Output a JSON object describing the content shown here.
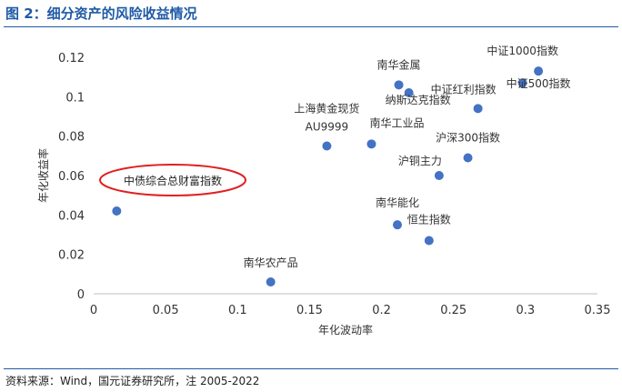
{
  "header": {
    "title": "图 2：细分资产的风险收益情况"
  },
  "footer": {
    "source": "资料来源：Wind，国元证券研究所，注 2005-2022"
  },
  "chart_data": {
    "type": "scatter",
    "title": "",
    "xlabel": "年化波动率",
    "ylabel": "年化收益率",
    "xlim": [
      0,
      0.35
    ],
    "ylim": [
      0,
      0.12
    ],
    "xticks": [
      "0",
      "0.05",
      "0.1",
      "0.15",
      "0.2",
      "0.25",
      "0.3",
      "0.35"
    ],
    "yticks": [
      "0",
      "0.02",
      "0.04",
      "0.06",
      "0.08",
      "0.1",
      "0.12"
    ],
    "grid": false,
    "point_color": "#4472c4",
    "annotation_color": "#e02020",
    "points": [
      {
        "label": "中债综合总财富指数",
        "x": 0.016,
        "y": 0.042
      },
      {
        "label": "南华农产品",
        "x": 0.123,
        "y": 0.006
      },
      {
        "label": "上海黄金现货AU9999",
        "x": 0.162,
        "y": 0.075
      },
      {
        "label": "南华工业品",
        "x": 0.193,
        "y": 0.076
      },
      {
        "label": "南华金属",
        "x": 0.212,
        "y": 0.106
      },
      {
        "label": "纳斯达克指数",
        "x": 0.219,
        "y": 0.102
      },
      {
        "label": "南华能化",
        "x": 0.211,
        "y": 0.035
      },
      {
        "label": "恒生指数",
        "x": 0.233,
        "y": 0.027
      },
      {
        "label": "沪铜主力",
        "x": 0.24,
        "y": 0.06
      },
      {
        "label": "沪深300指数",
        "x": 0.26,
        "y": 0.069
      },
      {
        "label": "中证红利指数",
        "x": 0.267,
        "y": 0.094
      },
      {
        "label": "中证1000指数",
        "x": 0.298,
        "y": 0.107
      },
      {
        "label": "中证500指数",
        "x": 0.309,
        "y": 0.113
      }
    ]
  }
}
